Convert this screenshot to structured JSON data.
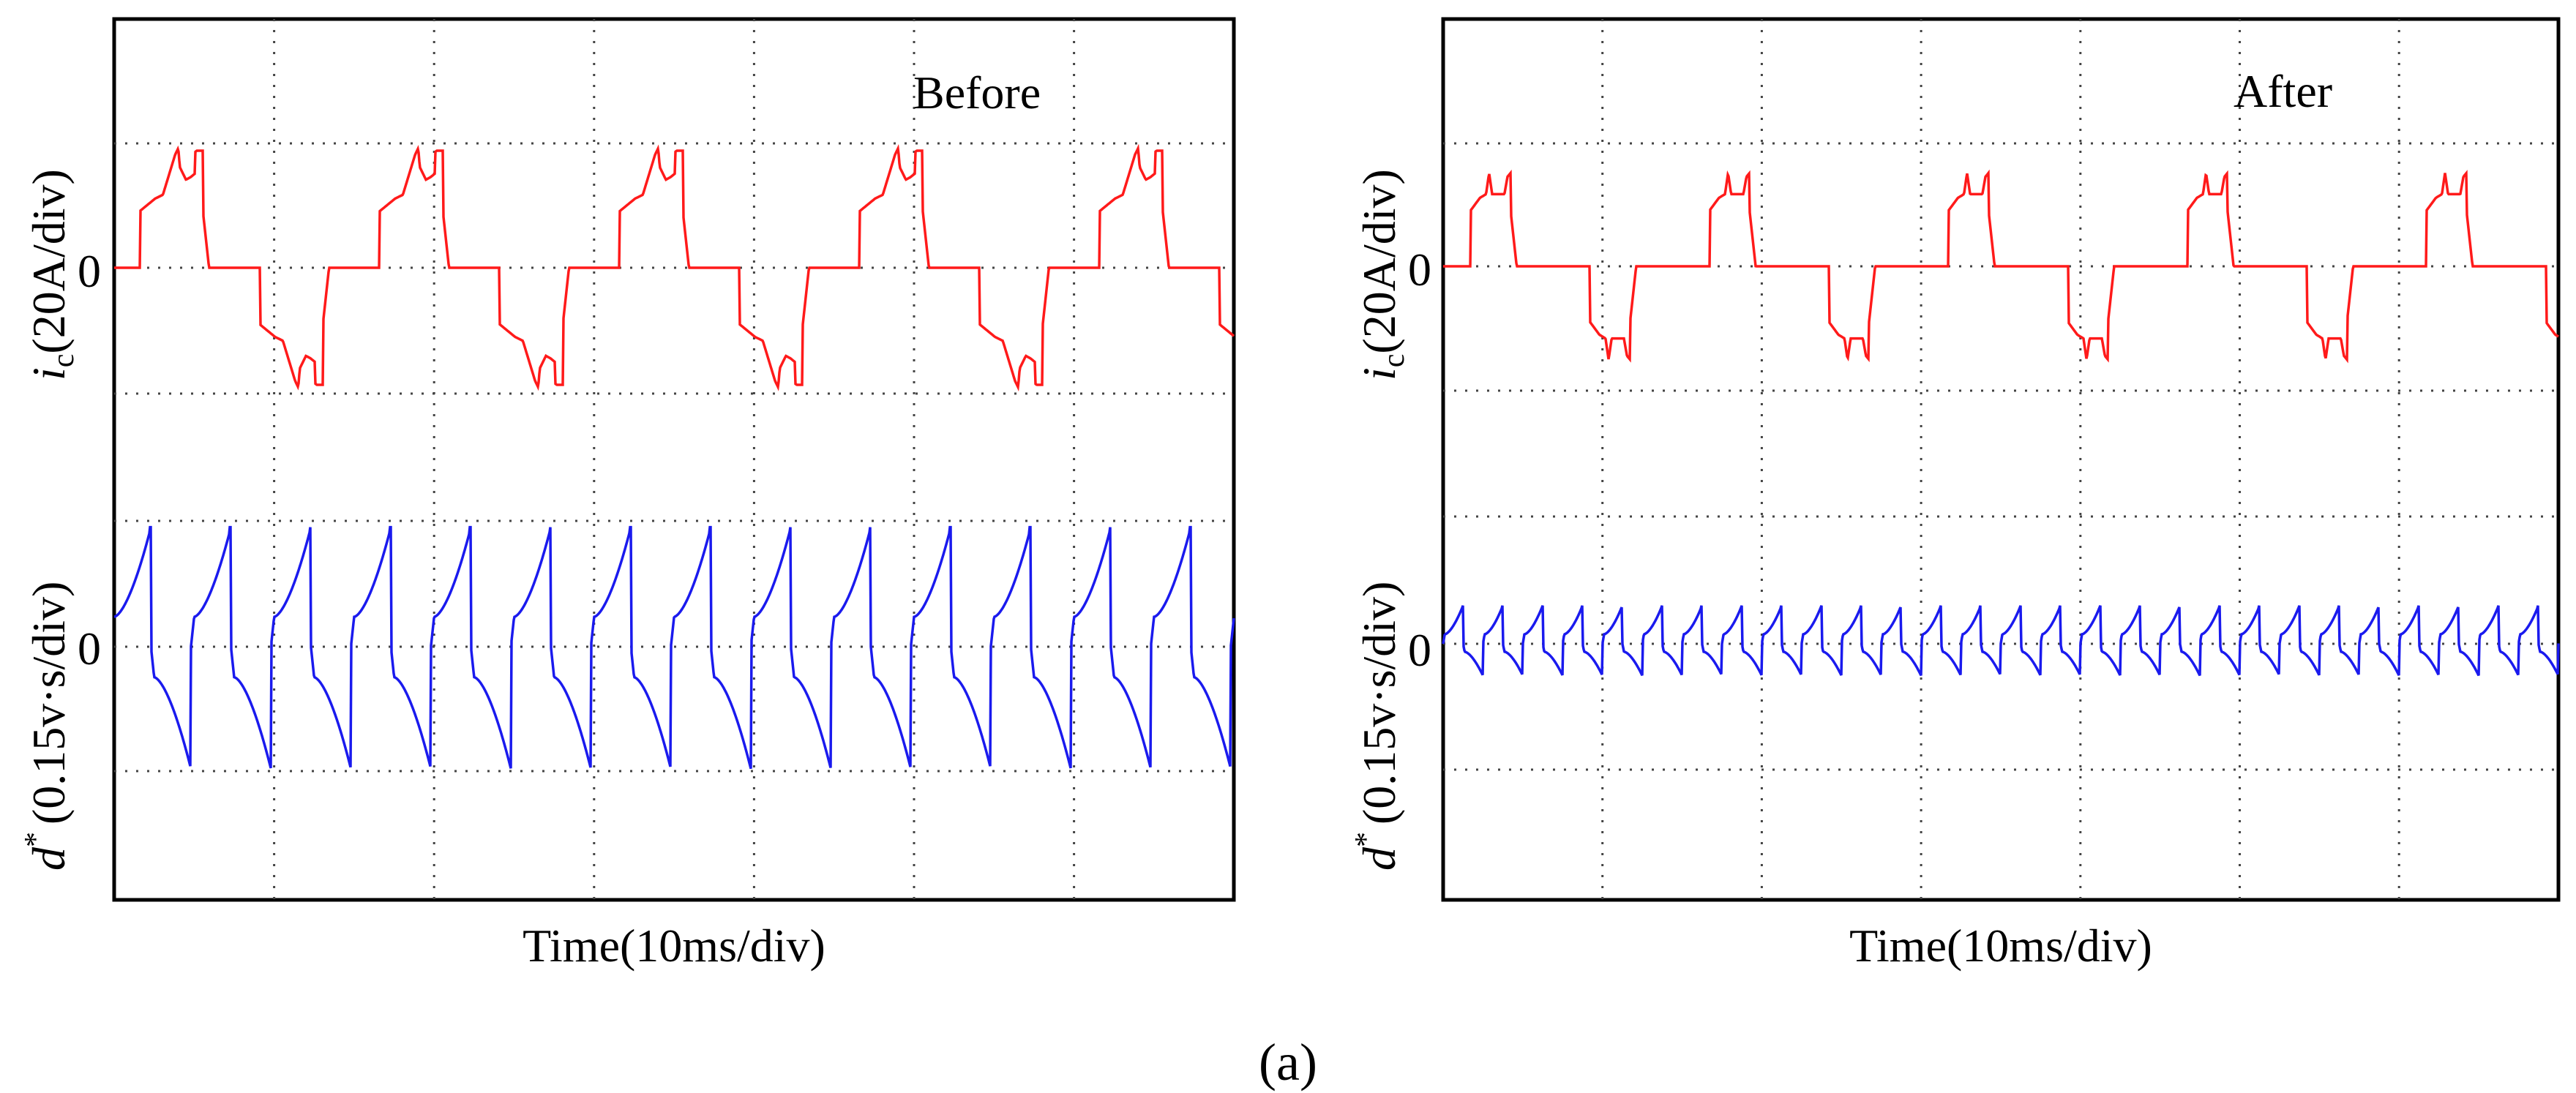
{
  "figure": {
    "caption": "(a)"
  },
  "colors": {
    "current": "#ff1a1a",
    "flux": "#1a1aee",
    "grid": "#444444",
    "frame": "#000000"
  },
  "chart_data": [
    {
      "type": "line",
      "title": "",
      "annotation": "Before",
      "xlabel": "Time(10ms/div)",
      "x_range_div": [
        0,
        7
      ],
      "ylabel_top": {
        "symbol": "i",
        "subscript": "c",
        "unit": "(20A/div)"
      },
      "ylabel_bottom": {
        "symbol": "d",
        "superscript": "*",
        "unit": "(0.15v·s/div)"
      },
      "zero_label_top": "0",
      "zero_label_bottom": "0",
      "grid": true,
      "series": [
        {
          "name": "i_c",
          "color": "#ff1a1a",
          "unit": "div (20A/div)",
          "period_div": 1.5,
          "phase_div": 0.08,
          "shape": [
            [
              0.0,
              0.0
            ],
            [
              0.25,
              0.0
            ],
            [
              0.25,
              0.45
            ],
            [
              0.3,
              0.5
            ],
            [
              0.35,
              0.55
            ],
            [
              0.4,
              0.58
            ],
            [
              0.43,
              0.7
            ],
            [
              0.48,
              0.9
            ],
            [
              0.5,
              0.95
            ],
            [
              0.51,
              0.8
            ],
            [
              0.55,
              0.7
            ],
            [
              0.58,
              0.72
            ],
            [
              0.61,
              0.75
            ],
            [
              0.61,
              0.92
            ],
            [
              0.62,
              0.93
            ],
            [
              0.66,
              0.93
            ],
            [
              0.66,
              0.45
            ],
            [
              0.7,
              0.0
            ],
            [
              0.78,
              0.0
            ]
          ],
          "y_range": [
            -5,
            5
          ]
        },
        {
          "name": "d*",
          "color": "#1a1aee",
          "unit": "div (0.15v·s/div)",
          "period_div": 0.5,
          "phase_div": 0.02,
          "amplitude_pos_div": 0.95,
          "amplitude_neg_div": 0.97,
          "y_range": [
            -5,
            5
          ]
        }
      ]
    },
    {
      "type": "line",
      "title": "",
      "annotation": "After",
      "xlabel": "Time(10ms/div)",
      "x_range_div": [
        0,
        7
      ],
      "ylabel_top": {
        "symbol": "i",
        "subscript": "c",
        "unit": "(20A/div)"
      },
      "ylabel_bottom": {
        "symbol": "d",
        "superscript": "*",
        "unit": "(0.15v·s/div)"
      },
      "zero_label_top": "0",
      "zero_label_bottom": "0",
      "grid": true,
      "series": [
        {
          "name": "i_c",
          "color": "#ff1a1a",
          "unit": "div (20A/div)",
          "period_div": 1.5,
          "phase_div": 0.0,
          "shape": [
            [
              0.0,
              0.0
            ],
            [
              0.18,
              0.0
            ],
            [
              0.18,
              0.45
            ],
            [
              0.24,
              0.55
            ],
            [
              0.28,
              0.58
            ],
            [
              0.3,
              0.75
            ],
            [
              0.32,
              0.58
            ],
            [
              0.4,
              0.58
            ],
            [
              0.42,
              0.72
            ],
            [
              0.44,
              0.75
            ],
            [
              0.44,
              0.45
            ],
            [
              0.48,
              0.0
            ],
            [
              0.78,
              0.0
            ]
          ],
          "y_range": [
            -5,
            5
          ]
        },
        {
          "name": "d*",
          "color": "#1a1aee",
          "unit": "div (0.15v·s/div)",
          "period_div": 0.25,
          "phase_div": 0.0,
          "amplitude_pos_div": 0.3,
          "amplitude_neg_div": 0.25,
          "y_range": [
            -5,
            5
          ]
        }
      ]
    }
  ]
}
